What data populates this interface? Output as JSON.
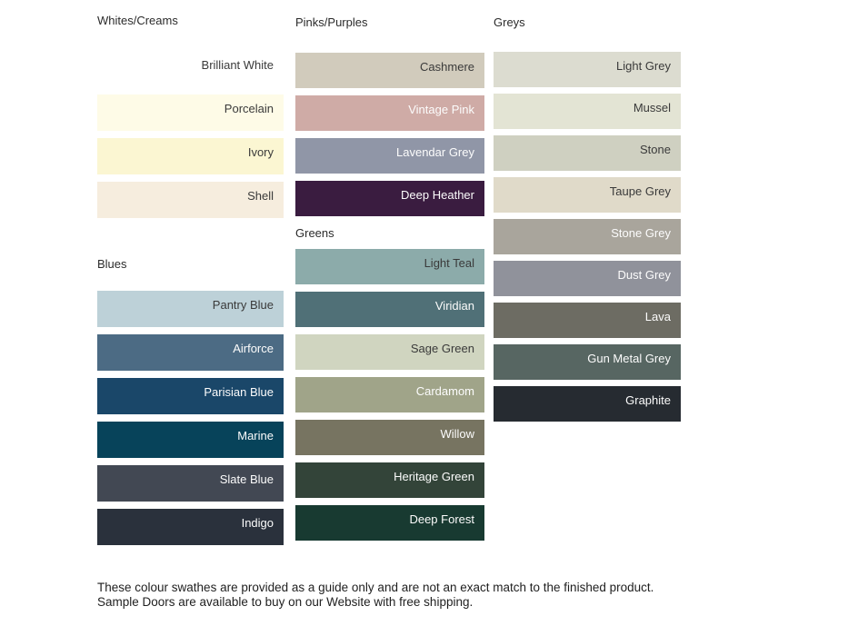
{
  "page": {
    "footer": "These colour swathes are provided as a guide only and are not an exact match to the finished product.  Sample Doors are available to buy on our Website with free shipping.",
    "text_dark": "#3a3a3a",
    "text_light": "#fcfcfc",
    "background": "#ffffff"
  },
  "columns": [
    {
      "groups": [
        {
          "title": "Whites/Creams",
          "swatches": [
            {
              "name": "Brilliant White",
              "color": "#ffffff",
              "text": "dark"
            },
            {
              "name": "Porcelain",
              "color": "#fefbe7",
              "text": "dark"
            },
            {
              "name": "Ivory",
              "color": "#fbf6d2",
              "text": "dark"
            },
            {
              "name": "Shell",
              "color": "#f6edde",
              "text": "dark"
            }
          ]
        },
        {
          "title": "Blues",
          "swatches": [
            {
              "name": "Pantry Blue",
              "color": "#bdd1d8",
              "text": "dark"
            },
            {
              "name": "Airforce",
              "color": "#4c6b84",
              "text": "light"
            },
            {
              "name": "Parisian Blue",
              "color": "#1a4769",
              "text": "light"
            },
            {
              "name": "Marine",
              "color": "#07435a",
              "text": "light"
            },
            {
              "name": "Slate Blue",
              "color": "#424853",
              "text": "light"
            },
            {
              "name": "Indigo",
              "color": "#2a313c",
              "text": "light"
            }
          ]
        }
      ]
    },
    {
      "groups": [
        {
          "title": "Pinks/Purples",
          "swatches": [
            {
              "name": "Cashmere",
              "color": "#d1cbbc",
              "text": "dark"
            },
            {
              "name": "Vintage Pink",
              "color": "#cfaba6",
              "text": "light"
            },
            {
              "name": "Lavendar Grey",
              "color": "#9096a7",
              "text": "light"
            },
            {
              "name": "Deep Heather",
              "color": "#3a1c40",
              "text": "light"
            }
          ]
        },
        {
          "title": "Greens",
          "swatches": [
            {
              "name": "Light Teal",
              "color": "#8cabaa",
              "text": "dark"
            },
            {
              "name": "Viridian",
              "color": "#507077",
              "text": "light"
            },
            {
              "name": "Sage Green",
              "color": "#d0d5c0",
              "text": "dark"
            },
            {
              "name": "Cardamom",
              "color": "#a0a489",
              "text": "light"
            },
            {
              "name": "Willow",
              "color": "#777461",
              "text": "light"
            },
            {
              "name": "Heritage Green",
              "color": "#334439",
              "text": "light"
            },
            {
              "name": "Deep Forest",
              "color": "#183a31",
              "text": "light"
            }
          ]
        }
      ]
    },
    {
      "groups": [
        {
          "title": "Greys",
          "swatches": [
            {
              "name": "Light Grey",
              "color": "#dcdcd0",
              "text": "dark"
            },
            {
              "name": "Mussel",
              "color": "#e3e4d4",
              "text": "dark"
            },
            {
              "name": "Stone",
              "color": "#cfd0c1",
              "text": "dark"
            },
            {
              "name": "Taupe Grey",
              "color": "#e0dac9",
              "text": "dark"
            },
            {
              "name": "Stone Grey",
              "color": "#a9a59c",
              "text": "light"
            },
            {
              "name": "Dust Grey",
              "color": "#90929b",
              "text": "light"
            },
            {
              "name": "Lava",
              "color": "#6d6c63",
              "text": "light"
            },
            {
              "name": "Gun Metal Grey",
              "color": "#576662",
              "text": "light"
            },
            {
              "name": "Graphite",
              "color": "#262b31",
              "text": "light"
            }
          ]
        }
      ]
    }
  ]
}
